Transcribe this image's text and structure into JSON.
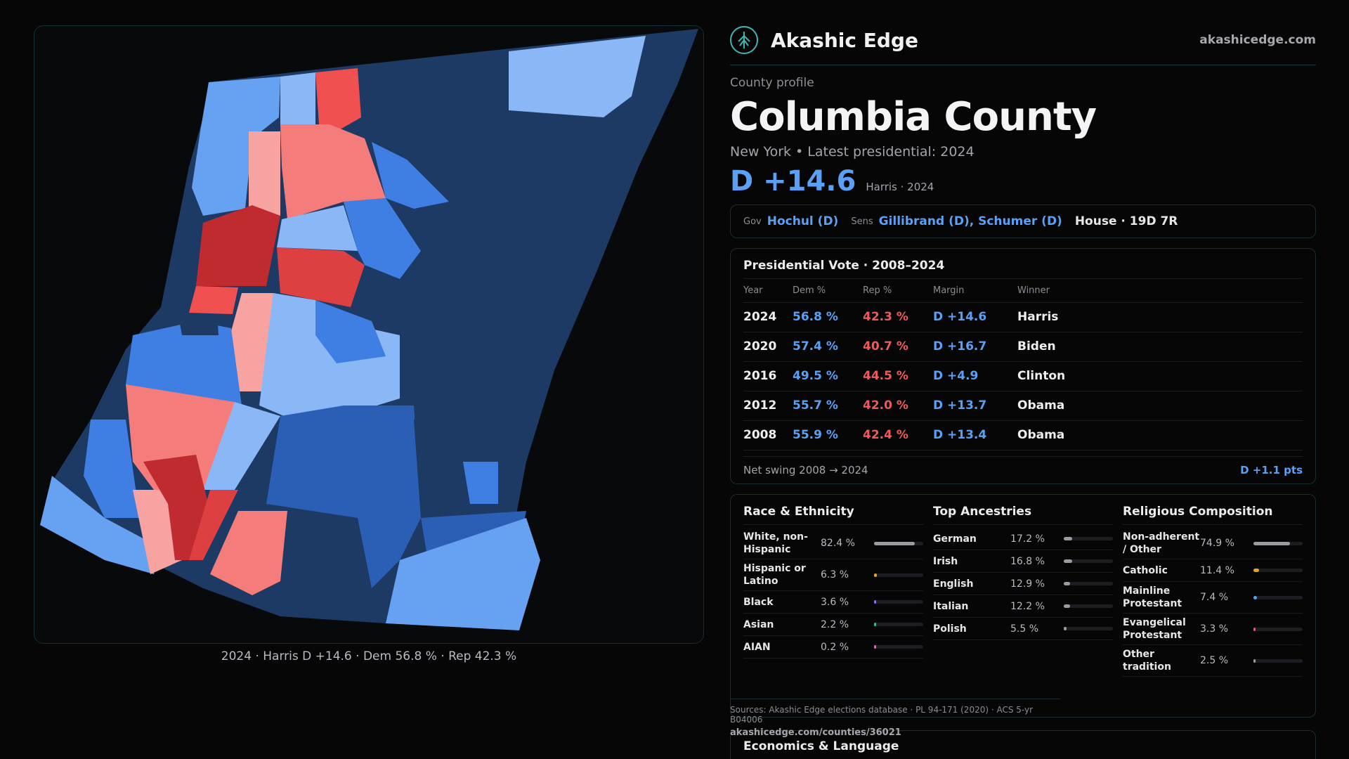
{
  "brand": {
    "name": "Akashic Edge",
    "url": "akashicedge.com",
    "logo_icon": "tree-icon",
    "accent": "#3fb6b3"
  },
  "county": {
    "kicker": "County profile",
    "name": "Columbia County",
    "subtitle": "New York  • Latest presidential: 2024",
    "margin": "D +14.6",
    "margin_note": "Harris · 2024"
  },
  "officials": {
    "gov_label": "Gov",
    "gov": "Hochul (D)",
    "sens_label": "Sens",
    "sens": "Gillibrand (D), Schumer (D)",
    "house": "House · 19D 7R"
  },
  "presidential": {
    "title": "Presidential Vote · 2008–2024",
    "headers": [
      "Year",
      "Dem %",
      "Rep %",
      "Margin",
      "Winner"
    ],
    "rows": [
      {
        "year": "2024",
        "dem": "56.8 %",
        "rep": "42.3 %",
        "margin": "D +14.6",
        "winner": "Harris"
      },
      {
        "year": "2020",
        "dem": "57.4 %",
        "rep": "40.7 %",
        "margin": "D +16.7",
        "winner": "Biden"
      },
      {
        "year": "2016",
        "dem": "49.5 %",
        "rep": "44.5 %",
        "margin": "D +4.9",
        "winner": "Clinton"
      },
      {
        "year": "2012",
        "dem": "55.7 %",
        "rep": "42.0 %",
        "margin": "D +13.7",
        "winner": "Obama"
      },
      {
        "year": "2008",
        "dem": "55.9 %",
        "rep": "42.4 %",
        "margin": "D +13.4",
        "winner": "Obama"
      }
    ],
    "swing_label": "Net swing 2008 → 2024",
    "swing_value": "D +1.1 pts"
  },
  "race": {
    "title": "Race & Ethnicity",
    "items": [
      {
        "label": "White, non-Hispanic",
        "value": "82.4 %",
        "share": 0.824,
        "color": "#9a9ca3"
      },
      {
        "label": "Hispanic or Latino",
        "value": "6.3 %",
        "share": 0.063,
        "color": "#e0a526"
      },
      {
        "label": "Black",
        "value": "3.6 %",
        "share": 0.036,
        "color": "#8c6df0"
      },
      {
        "label": "Asian",
        "value": "2.2 %",
        "share": 0.022,
        "color": "#2fc28f"
      },
      {
        "label": "AIAN",
        "value": "0.2 %",
        "share": 0.002,
        "color": "#d96aa8"
      }
    ]
  },
  "ancestry": {
    "title": "Top Ancestries",
    "items": [
      {
        "label": "German",
        "value": "17.2 %",
        "share": 0.172,
        "color": "#9a9ca3"
      },
      {
        "label": "Irish",
        "value": "16.8 %",
        "share": 0.168,
        "color": "#9a9ca3"
      },
      {
        "label": "English",
        "value": "12.9 %",
        "share": 0.129,
        "color": "#9a9ca3"
      },
      {
        "label": "Italian",
        "value": "12.2 %",
        "share": 0.122,
        "color": "#9a9ca3"
      },
      {
        "label": "Polish",
        "value": "5.5 %",
        "share": 0.055,
        "color": "#9a9ca3"
      }
    ]
  },
  "religion": {
    "title": "Religious Composition",
    "items": [
      {
        "label": "Non-adherent / Other",
        "value": "74.9 %",
        "share": 0.749,
        "color": "#9a9ca3"
      },
      {
        "label": "Catholic",
        "value": "11.4 %",
        "share": 0.114,
        "color": "#e0a526"
      },
      {
        "label": "Mainline Protestant",
        "value": "7.4 %",
        "share": 0.074,
        "color": "#5aa0f5"
      },
      {
        "label": "Evangelical Protestant",
        "value": "3.3 %",
        "share": 0.033,
        "color": "#e05a6a"
      },
      {
        "label": "Other tradition",
        "value": "2.5 %",
        "share": 0.025,
        "color": "#9a9ca3"
      }
    ]
  },
  "sources": {
    "text": "Sources: Akashic Edge elections database · PL 94-171 (2020) · ACS 5-yr B04006",
    "url": "akashicedge.com/counties/36021"
  },
  "econ": {
    "title": "Economics & Language"
  },
  "map": {
    "caption": "2024 · Harris D +14.6 · Dem 56.8 % · Rep 42.3 %",
    "colors": {
      "dark_blue": "#1d3a64",
      "mid_blue": "#2b5fb6",
      "blue": "#3f7fe4",
      "light_blue": "#67a2f2",
      "pale_blue": "#8ab8f6",
      "dark_red": "#bf2b2e",
      "red": "#de3f40",
      "salmon": "#f47c7b",
      "pink": "#f6a3a2"
    }
  }
}
